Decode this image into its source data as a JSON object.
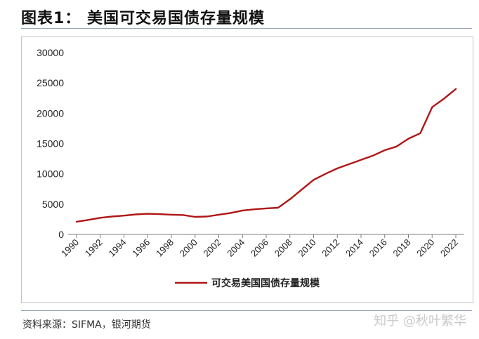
{
  "title": "图表1：   美国可交易国债存量规模",
  "source": "资料来源：SIFMA，银河期货",
  "watermark": "知乎 @秋叶繁华",
  "colors": {
    "series": "#b01616",
    "axis": "#7f7f7f"
  },
  "chart_data": {
    "type": "line",
    "title": "",
    "xlabel": "",
    "ylabel": "",
    "ylim": [
      0,
      30000
    ],
    "yticks": [
      0,
      5000,
      10000,
      15000,
      20000,
      25000,
      30000
    ],
    "xlim": [
      1990,
      2022
    ],
    "xticks": [
      1990,
      1992,
      1994,
      1996,
      1998,
      2000,
      2002,
      2004,
      2006,
      2008,
      2010,
      2012,
      2014,
      2016,
      2018,
      2020,
      2022
    ],
    "grid": false,
    "legend_position": "bottom",
    "series": [
      {
        "name": "可交易美国国债存量规模",
        "x": [
          1990,
          1991,
          1992,
          1993,
          1994,
          1995,
          1996,
          1997,
          1998,
          1999,
          2000,
          2001,
          2002,
          2003,
          2004,
          2005,
          2006,
          2007,
          2008,
          2009,
          2010,
          2011,
          2012,
          2013,
          2014,
          2015,
          2016,
          2017,
          2018,
          2019,
          2020,
          2021,
          2022
        ],
        "values": [
          2100,
          2400,
          2750,
          2950,
          3100,
          3300,
          3400,
          3350,
          3250,
          3200,
          2900,
          2950,
          3250,
          3550,
          3950,
          4150,
          4300,
          4400,
          5800,
          7400,
          9000,
          10000,
          10900,
          11600,
          12300,
          13000,
          13900,
          14500,
          15800,
          16700,
          21000,
          22400,
          24000
        ]
      }
    ]
  }
}
